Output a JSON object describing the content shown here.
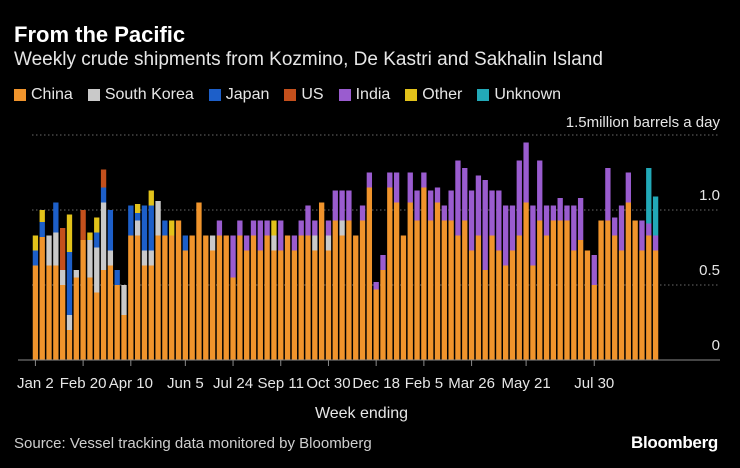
{
  "header": {
    "title": "From the Pacific",
    "subtitle": "Weekly crude shipments from Kozmino, De Kastri and Sakhalin Island"
  },
  "legend": [
    {
      "label": "China",
      "color": "#f0942c"
    },
    {
      "label": "South Korea",
      "color": "#c9c9c9"
    },
    {
      "label": "Japan",
      "color": "#1d5fc9"
    },
    {
      "label": "US",
      "color": "#c4501c"
    },
    {
      "label": "India",
      "color": "#9a5ccf"
    },
    {
      "label": "Other",
      "color": "#e2c21a"
    },
    {
      "label": "Unknown",
      "color": "#22a9b8"
    }
  ],
  "footer": {
    "source": "Vessel tracking data monitored by Bloomberg",
    "source_prefix": "Source: ",
    "brand": "Bloomberg"
  },
  "chart_data": {
    "type": "bar",
    "stacked": true,
    "unit_label": "1.5million barrels a day",
    "ylim": [
      0,
      1.5
    ],
    "yticks": [
      0,
      0.5,
      1.0
    ],
    "ytick_labels": [
      "0",
      "0.5",
      "1.0"
    ],
    "xlabel": "Week ending",
    "x_tick_labels": [
      {
        "label": "Jan 2",
        "index": 0
      },
      {
        "label": "Feb 20",
        "index": 7
      },
      {
        "label": "Apr 10",
        "index": 14
      },
      {
        "label": "Jun 5",
        "index": 22
      },
      {
        "label": "Jul 24",
        "index": 29
      },
      {
        "label": "Sep 11",
        "index": 36
      },
      {
        "label": "Oct 30",
        "index": 43
      },
      {
        "label": "Dec 18",
        "index": 50
      },
      {
        "label": "Feb 5",
        "index": 57
      },
      {
        "label": "Mar 26",
        "index": 64
      },
      {
        "label": "May 21",
        "index": 72
      },
      {
        "label": "Jul 30",
        "index": 82
      }
    ],
    "grid": true,
    "legend_position": "top",
    "series_order": [
      "China",
      "South Korea",
      "Japan",
      "US",
      "India",
      "Other",
      "Unknown"
    ],
    "weeks": [
      {
        "China": 0.63,
        "Japan": 0.1,
        "Other": 0.1
      },
      {
        "China": 0.82,
        "Japan": 0.1,
        "Other": 0.08
      },
      {
        "China": 0.63,
        "South Korea": 0.2
      },
      {
        "China": 0.63,
        "South Korea": 0.22,
        "Japan": 0.2
      },
      {
        "China": 0.5,
        "South Korea": 0.1,
        "US": 0.28
      },
      {
        "China": 0.2,
        "Japan": 0.42,
        "South Korea": 0.1,
        "Other": 0.25
      },
      {
        "China": 0.55,
        "South Korea": 0.05
      },
      {
        "China": 0.8,
        "US": 0.2
      },
      {
        "China": 0.55,
        "South Korea": 0.25,
        "Other": 0.05
      },
      {
        "China": 0.45,
        "South Korea": 0.3,
        "Japan": 0.1,
        "Other": 0.1
      },
      {
        "China": 0.6,
        "South Korea": 0.45,
        "Japan": 0.1,
        "US": 0.12
      },
      {
        "China": 0.63,
        "South Korea": 0.1,
        "Japan": 0.27
      },
      {
        "China": 0.5,
        "Japan": 0.1
      },
      {
        "China": 0.3,
        "South Korea": 0.2
      },
      {
        "China": 0.83,
        "Japan": 0.2
      },
      {
        "China": 0.83,
        "South Korea": 0.1,
        "Japan": 0.05,
        "Other": 0.06
      },
      {
        "China": 0.63,
        "South Korea": 0.1,
        "Japan": 0.3
      },
      {
        "China": 0.63,
        "South Korea": 0.1,
        "Japan": 0.3,
        "Other": 0.1
      },
      {
        "China": 0.83,
        "South Korea": 0.23
      },
      {
        "China": 0.83,
        "Japan": 0.1
      },
      {
        "China": 0.83,
        "Other": 0.1
      },
      {
        "China": 0.93
      },
      {
        "China": 0.73,
        "Japan": 0.1
      },
      {
        "China": 0.83
      },
      {
        "China": 1.05
      },
      {
        "China": 0.83
      },
      {
        "China": 0.73,
        "South Korea": 0.1
      },
      {
        "China": 0.83,
        "India": 0.1
      },
      {
        "China": 0.83
      },
      {
        "China": 0.55,
        "India": 0.28
      },
      {
        "China": 0.83,
        "India": 0.1
      },
      {
        "China": 0.73,
        "India": 0.1
      },
      {
        "China": 0.83,
        "India": 0.1
      },
      {
        "China": 0.73,
        "India": 0.2
      },
      {
        "China": 0.83,
        "India": 0.1
      },
      {
        "China": 0.73,
        "South Korea": 0.1,
        "Other": 0.1
      },
      {
        "China": 0.73,
        "India": 0.2
      },
      {
        "China": 0.83
      },
      {
        "China": 0.73,
        "India": 0.1
      },
      {
        "China": 0.83,
        "India": 0.1
      },
      {
        "China": 0.83,
        "India": 0.2
      },
      {
        "China": 0.73,
        "South Korea": 0.1,
        "India": 0.1
      },
      {
        "China": 1.05
      },
      {
        "China": 0.73,
        "South Korea": 0.1,
        "India": 0.1
      },
      {
        "China": 0.93,
        "India": 0.2
      },
      {
        "China": 0.83,
        "South Korea": 0.1,
        "India": 0.2
      },
      {
        "China": 0.93,
        "India": 0.2
      },
      {
        "China": 0.83
      },
      {
        "China": 0.93,
        "India": 0.1
      },
      {
        "China": 1.15,
        "India": 0.1
      },
      {
        "China": 0.47,
        "India": 0.05
      },
      {
        "China": 0.6,
        "India": 0.1
      },
      {
        "China": 1.15,
        "India": 0.1
      },
      {
        "China": 1.05,
        "India": 0.2
      },
      {
        "China": 0.83
      },
      {
        "China": 1.05,
        "India": 0.2
      },
      {
        "China": 0.93,
        "India": 0.2
      },
      {
        "China": 1.15,
        "India": 0.1
      },
      {
        "China": 0.93,
        "India": 0.2
      },
      {
        "China": 1.05,
        "India": 0.1
      },
      {
        "China": 0.93,
        "India": 0.1
      },
      {
        "China": 0.93,
        "India": 0.2
      },
      {
        "China": 0.83,
        "India": 0.5
      },
      {
        "China": 0.93,
        "India": 0.35
      },
      {
        "China": 0.73,
        "India": 0.4
      },
      {
        "China": 0.83,
        "India": 0.4
      },
      {
        "China": 0.6,
        "India": 0.6
      },
      {
        "China": 0.83,
        "India": 0.3
      },
      {
        "China": 0.73,
        "India": 0.4
      },
      {
        "China": 0.63,
        "India": 0.4
      },
      {
        "China": 0.73,
        "India": 0.3
      },
      {
        "China": 0.83,
        "India": 0.5
      },
      {
        "China": 1.05,
        "India": 0.4
      },
      {
        "China": 0.63,
        "India": 0.4
      },
      {
        "China": 0.93,
        "India": 0.4
      },
      {
        "China": 0.83,
        "India": 0.2
      },
      {
        "China": 0.93,
        "India": 0.1
      },
      {
        "China": 0.93,
        "India": 0.15
      },
      {
        "China": 0.93,
        "India": 0.1
      },
      {
        "China": 0.73,
        "India": 0.3
      },
      {
        "China": 0.8,
        "India": 0.28
      },
      {
        "China": 0.73
      },
      {
        "China": 0.5,
        "India": 0.2
      },
      {
        "China": 0.93
      },
      {
        "China": 0.93,
        "India": 0.35
      },
      {
        "China": 0.83,
        "India": 0.12
      },
      {
        "China": 0.73,
        "India": 0.3
      },
      {
        "China": 1.05,
        "India": 0.2
      },
      {
        "China": 0.93
      },
      {
        "China": 0.73,
        "India": 0.2
      },
      {
        "China": 0.83,
        "India": 0.08,
        "Unknown": 0.37
      },
      {
        "China": 0.73,
        "India": 0.1,
        "Unknown": 0.26
      }
    ]
  }
}
